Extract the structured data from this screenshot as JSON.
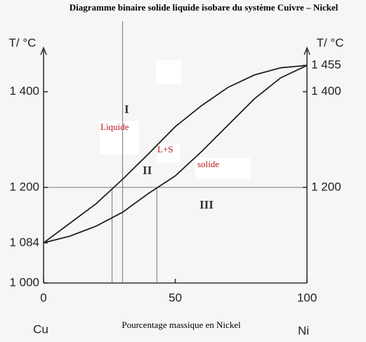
{
  "chart_data": {
    "type": "line",
    "title": "Diagramme binaire solide liquide isobare du système Cuivre – Nickel",
    "xlabel": "Pourcentage massique en Nickel",
    "ylabel": "T/ °C",
    "y2label": "T/ °C",
    "left_element": "Cu",
    "right_element": "Ni",
    "x": [
      0,
      10,
      20,
      30,
      40,
      50,
      60,
      70,
      80,
      90,
      100
    ],
    "series": [
      {
        "color": "#222222",
        "values": [
          1084,
          1125,
          1166,
          1217,
          1271,
          1327,
          1371,
          1409,
          1435,
          1450,
          1455
        ]
      },
      {
        "color": "#222222",
        "values": [
          1084,
          1098,
          1119,
          1148,
          1188,
          1224,
          1275,
          1330,
          1385,
          1429,
          1455
        ]
      }
    ],
    "xlim": [
      0,
      100
    ],
    "xticks": [
      0,
      50,
      100
    ],
    "ylim": [
      1000,
      1500
    ],
    "yticks": [
      {
        "value": 1000,
        "label": "1 000"
      },
      {
        "value": 1084,
        "label": "1 084"
      },
      {
        "value": 1200,
        "label": "1 200"
      },
      {
        "value": 1400,
        "label": "1 400"
      }
    ],
    "y2lim": [
      1000,
      1500
    ],
    "y2ticks": [
      {
        "value": 1200,
        "label": "1 200"
      },
      {
        "value": 1400,
        "label": "1 400"
      },
      {
        "value": 1455,
        "label": "1 455"
      }
    ],
    "isotherm": 1200,
    "vertical_line": 30,
    "drop_lines": [
      26,
      43
    ],
    "regions": [
      "I",
      "II",
      "III"
    ],
    "annotations": {
      "liquid": "Liquide",
      "mix": "L+S",
      "solid": "solide"
    }
  }
}
